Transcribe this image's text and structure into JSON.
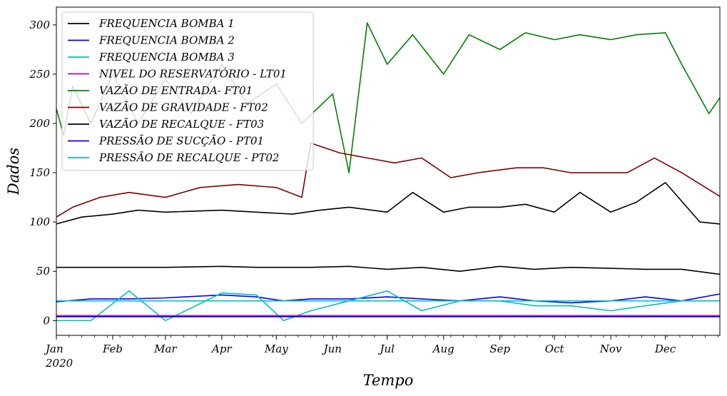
{
  "chart_data": {
    "type": "line",
    "xlabel": "Tempo",
    "ylabel": "Dados",
    "x_range": [
      "2020-01-01",
      "2020-12-31"
    ],
    "ylim": [
      -15,
      318
    ],
    "y_ticks": [
      0,
      50,
      100,
      150,
      200,
      250,
      300
    ],
    "x_ticks": [
      {
        "date": "2020-01-01",
        "label": "Jan",
        "sublabel": "2020"
      },
      {
        "date": "2020-02-01",
        "label": "Feb"
      },
      {
        "date": "2020-03-01",
        "label": "Mar"
      },
      {
        "date": "2020-04-01",
        "label": "Apr"
      },
      {
        "date": "2020-05-01",
        "label": "May"
      },
      {
        "date": "2020-06-01",
        "label": "Jun"
      },
      {
        "date": "2020-07-01",
        "label": "Jul"
      },
      {
        "date": "2020-08-01",
        "label": "Aug"
      },
      {
        "date": "2020-09-01",
        "label": "Sep"
      },
      {
        "date": "2020-10-01",
        "label": "Oct"
      },
      {
        "date": "2020-11-01",
        "label": "Nov"
      },
      {
        "date": "2020-12-01",
        "label": "Dec"
      }
    ],
    "grid": false,
    "legend_position": "upper-left",
    "series": [
      {
        "name": "FREQUENCIA BOMBA 1",
        "color": "#000000",
        "points": [
          [
            "2020-01-01",
            54
          ],
          [
            "2020-01-20",
            54
          ],
          [
            "2020-02-10",
            54
          ],
          [
            "2020-03-01",
            54
          ],
          [
            "2020-04-01",
            55
          ],
          [
            "2020-04-20",
            54
          ],
          [
            "2020-05-05",
            54
          ],
          [
            "2020-05-20",
            54
          ],
          [
            "2020-06-10",
            55
          ],
          [
            "2020-07-01",
            52
          ],
          [
            "2020-07-20",
            54
          ],
          [
            "2020-08-10",
            50
          ],
          [
            "2020-09-01",
            55
          ],
          [
            "2020-09-20",
            52
          ],
          [
            "2020-10-10",
            54
          ],
          [
            "2020-11-01",
            53
          ],
          [
            "2020-11-20",
            52
          ],
          [
            "2020-12-10",
            52
          ],
          [
            "2020-12-31",
            47
          ]
        ]
      },
      {
        "name": "FREQUENCIA BOMBA 2",
        "color": "#0000ff",
        "points": [
          [
            "2020-01-01",
            19
          ],
          [
            "2020-01-20",
            22
          ],
          [
            "2020-02-10",
            22
          ],
          [
            "2020-03-01",
            23
          ],
          [
            "2020-04-01",
            26
          ],
          [
            "2020-04-20",
            24
          ],
          [
            "2020-05-05",
            20
          ],
          [
            "2020-05-20",
            22
          ],
          [
            "2020-06-10",
            22
          ],
          [
            "2020-07-01",
            24
          ],
          [
            "2020-07-20",
            22
          ],
          [
            "2020-08-10",
            20
          ],
          [
            "2020-09-01",
            24
          ],
          [
            "2020-09-20",
            20
          ],
          [
            "2020-10-10",
            18
          ],
          [
            "2020-11-01",
            20
          ],
          [
            "2020-11-20",
            24
          ],
          [
            "2020-12-10",
            20
          ],
          [
            "2020-12-31",
            27
          ]
        ]
      },
      {
        "name": "FREQUENCIA BOMBA 3",
        "color": "#00bfbf",
        "points": [
          [
            "2020-01-01",
            0
          ],
          [
            "2020-01-20",
            0
          ],
          [
            "2020-02-10",
            30
          ],
          [
            "2020-03-01",
            0
          ],
          [
            "2020-04-01",
            28
          ],
          [
            "2020-04-20",
            26
          ],
          [
            "2020-05-05",
            0
          ],
          [
            "2020-05-20",
            10
          ],
          [
            "2020-06-10",
            20
          ],
          [
            "2020-07-01",
            30
          ],
          [
            "2020-07-20",
            10
          ],
          [
            "2020-08-10",
            20
          ],
          [
            "2020-09-01",
            20
          ],
          [
            "2020-09-20",
            15
          ],
          [
            "2020-10-10",
            15
          ],
          [
            "2020-11-01",
            10
          ],
          [
            "2020-11-20",
            15
          ],
          [
            "2020-12-10",
            20
          ],
          [
            "2020-12-31",
            20
          ]
        ]
      },
      {
        "name": "NIVEL DO RESERVATÓRIO - LT01",
        "color": "#bf00bf",
        "points": [
          [
            "2020-01-01",
            5
          ],
          [
            "2020-03-01",
            5
          ],
          [
            "2020-06-01",
            5
          ],
          [
            "2020-09-01",
            5
          ],
          [
            "2020-12-31",
            5
          ]
        ]
      },
      {
        "name": "VAZÃO DE ENTRADA- FT01",
        "color": "#008000",
        "points": [
          [
            "2020-01-01",
            215
          ],
          [
            "2020-01-05",
            188
          ],
          [
            "2020-01-10",
            238
          ],
          [
            "2020-01-20",
            200
          ],
          [
            "2020-02-01",
            250
          ],
          [
            "2020-02-15",
            200
          ],
          [
            "2020-03-01",
            245
          ],
          [
            "2020-03-15",
            210
          ],
          [
            "2020-04-01",
            260
          ],
          [
            "2020-04-15",
            220
          ],
          [
            "2020-05-01",
            240
          ],
          [
            "2020-05-15",
            200
          ],
          [
            "2020-06-01",
            230
          ],
          [
            "2020-06-10",
            150
          ],
          [
            "2020-06-20",
            302
          ],
          [
            "2020-07-01",
            260
          ],
          [
            "2020-07-15",
            290
          ],
          [
            "2020-08-01",
            250
          ],
          [
            "2020-08-15",
            290
          ],
          [
            "2020-09-01",
            275
          ],
          [
            "2020-09-15",
            292
          ],
          [
            "2020-10-01",
            285
          ],
          [
            "2020-10-15",
            290
          ],
          [
            "2020-11-01",
            285
          ],
          [
            "2020-11-15",
            290
          ],
          [
            "2020-12-01",
            292
          ],
          [
            "2020-12-10",
            260
          ],
          [
            "2020-12-25",
            210
          ],
          [
            "2020-12-31",
            226
          ]
        ]
      },
      {
        "name": "VAZÃO DE GRAVIDADE - FT02",
        "color": "#800000",
        "points": [
          [
            "2020-01-01",
            105
          ],
          [
            "2020-01-10",
            115
          ],
          [
            "2020-01-25",
            125
          ],
          [
            "2020-02-10",
            130
          ],
          [
            "2020-03-01",
            125
          ],
          [
            "2020-03-20",
            135
          ],
          [
            "2020-04-10",
            138
          ],
          [
            "2020-05-01",
            135
          ],
          [
            "2020-05-15",
            125
          ],
          [
            "2020-05-20",
            180
          ],
          [
            "2020-06-05",
            170
          ],
          [
            "2020-06-20",
            165
          ],
          [
            "2020-07-05",
            160
          ],
          [
            "2020-07-20",
            165
          ],
          [
            "2020-08-05",
            145
          ],
          [
            "2020-08-20",
            150
          ],
          [
            "2020-09-10",
            155
          ],
          [
            "2020-09-25",
            155
          ],
          [
            "2020-10-10",
            150
          ],
          [
            "2020-10-25",
            150
          ],
          [
            "2020-11-10",
            150
          ],
          [
            "2020-11-25",
            165
          ],
          [
            "2020-12-10",
            150
          ],
          [
            "2020-12-31",
            126
          ]
        ]
      },
      {
        "name": "VAZÃO DE RECALQUE - FT03",
        "color": "#000000",
        "points": [
          [
            "2020-01-01",
            98
          ],
          [
            "2020-01-15",
            105
          ],
          [
            "2020-02-01",
            108
          ],
          [
            "2020-02-15",
            112
          ],
          [
            "2020-03-01",
            110
          ],
          [
            "2020-04-01",
            112
          ],
          [
            "2020-04-20",
            110
          ],
          [
            "2020-05-10",
            108
          ],
          [
            "2020-05-25",
            112
          ],
          [
            "2020-06-10",
            115
          ],
          [
            "2020-07-01",
            110
          ],
          [
            "2020-07-15",
            130
          ],
          [
            "2020-08-01",
            110
          ],
          [
            "2020-08-15",
            115
          ],
          [
            "2020-09-01",
            115
          ],
          [
            "2020-09-15",
            118
          ],
          [
            "2020-10-01",
            110
          ],
          [
            "2020-10-15",
            130
          ],
          [
            "2020-11-01",
            110
          ],
          [
            "2020-11-15",
            120
          ],
          [
            "2020-12-01",
            140
          ],
          [
            "2020-12-20",
            100
          ],
          [
            "2020-12-31",
            98
          ]
        ]
      },
      {
        "name": "PRESSÃO DE SUCÇÃO - PT01",
        "color": "#0000ff",
        "points": [
          [
            "2020-01-01",
            4
          ],
          [
            "2020-03-01",
            4
          ],
          [
            "2020-06-01",
            4
          ],
          [
            "2020-09-01",
            4
          ],
          [
            "2020-12-31",
            4
          ]
        ]
      },
      {
        "name": "PRESSÃO DE RECALQUE - PT02",
        "color": "#00bfbf",
        "points": [
          [
            "2020-01-01",
            20
          ],
          [
            "2020-03-01",
            20
          ],
          [
            "2020-05-01",
            20
          ],
          [
            "2020-06-01",
            20
          ],
          [
            "2020-08-01",
            20
          ],
          [
            "2020-10-01",
            20
          ],
          [
            "2020-12-31",
            20
          ]
        ]
      }
    ]
  }
}
